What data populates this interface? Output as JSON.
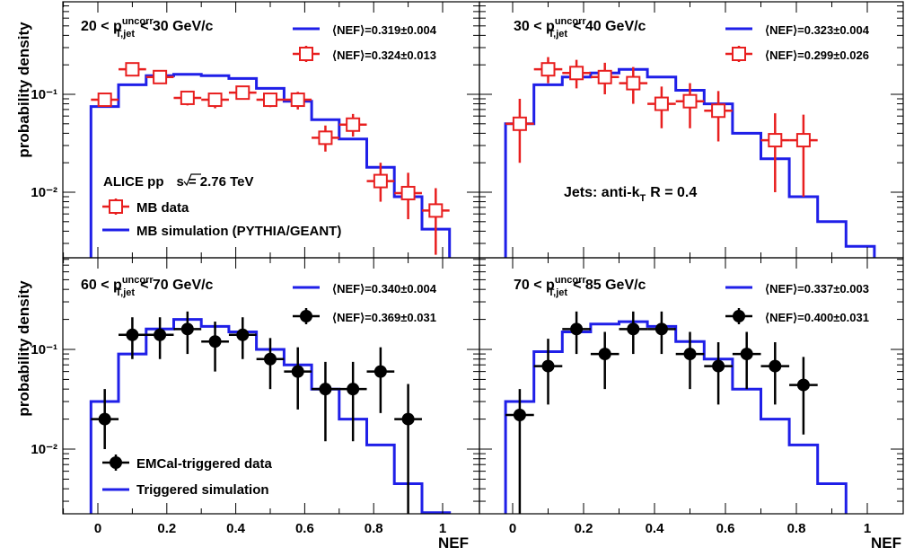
{
  "figure": {
    "ylabel": "probability density",
    "xlabel": "NEF",
    "ylabel_top": "probability density",
    "ylabel_bottom": "probability density",
    "xlabel_left": "NEF",
    "xlabel_right": "NEF",
    "colors": {
      "simulation": "#1f1fe8",
      "mb_data": "#e81f1f",
      "triggered_data": "#000000",
      "frame": "#000000"
    },
    "x_ticks": [
      "0",
      "0.2",
      "0.4",
      "0.6",
      "0.8",
      "1"
    ],
    "y_ticks": [
      "10⁻¹",
      "10⁻²"
    ]
  },
  "chart_data": [
    {
      "type": "line",
      "panel": "top-left",
      "title_prefix": "20 < p",
      "title_sup": "uncorr",
      "title_sub": "T,jet",
      "title_suffix": "< 30 GeV/c",
      "xlim": [
        -0.1,
        1.05
      ],
      "ylim": [
        0.0022,
        0.8
      ],
      "yscale": "log",
      "legend_sim": "⟨NEF⟩=0.319±0.004",
      "legend_data": "⟨NEF⟩=0.324±0.013",
      "annotations": {
        "system_prefix": "ALICE pp",
        "system_suffix": "= 2.76 TeV",
        "data_label": "MB data",
        "sim_label": "MB simulation (PYTHIA/GEANT)"
      },
      "series": [
        {
          "name": "MB simulation (PYTHIA/GEANT)",
          "kind": "step",
          "edges": [
            -0.02,
            0.06,
            0.14,
            0.22,
            0.3,
            0.38,
            0.46,
            0.54,
            0.62,
            0.7,
            0.78,
            0.86,
            0.94,
            1.02
          ],
          "values": [
            0.075,
            0.125,
            0.155,
            0.16,
            0.155,
            0.145,
            0.115,
            0.085,
            0.055,
            0.035,
            0.018,
            0.009,
            0.0042
          ]
        },
        {
          "name": "MB data",
          "kind": "points",
          "marker": "open-square",
          "x": [
            0.02,
            0.1,
            0.18,
            0.26,
            0.34,
            0.42,
            0.5,
            0.58,
            0.66,
            0.74,
            0.82,
            0.9,
            0.98
          ],
          "y": [
            0.088,
            0.18,
            0.15,
            0.092,
            0.088,
            0.104,
            0.088,
            0.088,
            0.036,
            0.049,
            0.013,
            0.0098,
            0.0065
          ],
          "yerr_low": [
            0.012,
            0.02,
            0.018,
            0.015,
            0.016,
            0.014,
            0.014,
            0.018,
            0.01,
            0.012,
            0.005,
            0.0045,
            0.0042
          ],
          "yerr_high": [
            0.012,
            0.02,
            0.018,
            0.015,
            0.016,
            0.014,
            0.014,
            0.018,
            0.012,
            0.014,
            0.007,
            0.006,
            0.0045
          ],
          "xerr": 0.04
        }
      ]
    },
    {
      "type": "line",
      "panel": "top-right",
      "title_prefix": "30 < p",
      "title_sup": "uncorr",
      "title_sub": "T,jet",
      "title_suffix": "< 40 GeV/c",
      "xlim": [
        -0.1,
        1.05
      ],
      "ylim": [
        0.0022,
        0.8
      ],
      "yscale": "log",
      "legend_sim": "⟨NEF⟩=0.323±0.004",
      "legend_data": "⟨NEF⟩=0.299±0.026",
      "annotations": {
        "jets_prefix": "Jets: anti-k",
        "jets_sub": "T",
        "jets_suffix": "R = 0.4"
      },
      "series": [
        {
          "name": "simulation",
          "kind": "step",
          "edges": [
            -0.02,
            0.06,
            0.14,
            0.22,
            0.3,
            0.38,
            0.46,
            0.54,
            0.62,
            0.7,
            0.78,
            0.86,
            0.94,
            1.02
          ],
          "values": [
            0.05,
            0.125,
            0.15,
            0.165,
            0.18,
            0.15,
            0.11,
            0.08,
            0.04,
            0.022,
            0.009,
            0.005,
            0.0028
          ]
        },
        {
          "name": "data",
          "kind": "points",
          "marker": "open-square",
          "x": [
            0.02,
            0.1,
            0.18,
            0.26,
            0.34,
            0.42,
            0.5,
            0.58,
            0.74,
            0.82
          ],
          "y": [
            0.05,
            0.18,
            0.165,
            0.15,
            0.13,
            0.08,
            0.085,
            0.068,
            0.034,
            0.034
          ],
          "yerr_low": [
            0.03,
            0.05,
            0.05,
            0.05,
            0.05,
            0.035,
            0.04,
            0.035,
            0.024,
            0.025
          ],
          "yerr_high": [
            0.04,
            0.06,
            0.06,
            0.06,
            0.06,
            0.04,
            0.045,
            0.04,
            0.03,
            0.028
          ],
          "xerr": 0.04
        }
      ]
    },
    {
      "type": "line",
      "panel": "bottom-left",
      "title_prefix": "60 < p",
      "title_sup": "uncorr",
      "title_sub": "T,jet",
      "title_suffix": "< 70 GeV/c",
      "xlim": [
        -0.1,
        1.05
      ],
      "ylim": [
        0.0022,
        0.8
      ],
      "yscale": "log",
      "legend_sim": "⟨NEF⟩=0.340±0.004",
      "legend_data": "⟨NEF⟩=0.369±0.031",
      "annotations": {
        "data_label": "EMCal-triggered data",
        "sim_label": "Triggered simulation"
      },
      "series": [
        {
          "name": "Triggered simulation",
          "kind": "step",
          "edges": [
            -0.02,
            0.06,
            0.14,
            0.22,
            0.3,
            0.38,
            0.46,
            0.54,
            0.62,
            0.7,
            0.78,
            0.86,
            0.94,
            1.02
          ],
          "values": [
            0.03,
            0.09,
            0.16,
            0.2,
            0.17,
            0.15,
            0.1,
            0.07,
            0.04,
            0.02,
            0.011,
            0.0045,
            0.0023
          ]
        },
        {
          "name": "EMCal-triggered data",
          "kind": "points",
          "marker": "filled-circle",
          "x": [
            0.02,
            0.1,
            0.18,
            0.26,
            0.34,
            0.42,
            0.5,
            0.58,
            0.66,
            0.74,
            0.82,
            0.9
          ],
          "y": [
            0.02,
            0.14,
            0.14,
            0.16,
            0.12,
            0.14,
            0.08,
            0.06,
            0.04,
            0.04,
            0.06,
            0.02
          ],
          "yerr_low": [
            0.01,
            0.06,
            0.06,
            0.07,
            0.06,
            0.06,
            0.04,
            0.035,
            0.028,
            0.028,
            0.037,
            0.018
          ],
          "yerr_high": [
            0.02,
            0.07,
            0.07,
            0.08,
            0.07,
            0.07,
            0.05,
            0.045,
            0.035,
            0.035,
            0.045,
            0.025
          ],
          "xerr": 0.04
        }
      ]
    },
    {
      "type": "line",
      "panel": "bottom-right",
      "title_prefix": "70 < p",
      "title_sup": "uncorr",
      "title_sub": "T,jet",
      "title_suffix": "< 85 GeV/c",
      "xlim": [
        -0.1,
        1.05
      ],
      "ylim": [
        0.0022,
        0.8
      ],
      "yscale": "log",
      "legend_sim": "⟨NEF⟩=0.337±0.003",
      "legend_data": "⟨NEF⟩=0.400±0.031",
      "annotations": {},
      "series": [
        {
          "name": "simulation",
          "kind": "step",
          "edges": [
            -0.02,
            0.06,
            0.14,
            0.22,
            0.3,
            0.38,
            0.46,
            0.54,
            0.62,
            0.7,
            0.78,
            0.86,
            0.94,
            1.02
          ],
          "values": [
            0.03,
            0.095,
            0.15,
            0.18,
            0.19,
            0.17,
            0.12,
            0.08,
            0.04,
            0.02,
            0.011,
            0.0045,
            0.0022
          ]
        },
        {
          "name": "data",
          "kind": "points",
          "marker": "filled-circle",
          "x": [
            0.02,
            0.1,
            0.18,
            0.26,
            0.34,
            0.42,
            0.5,
            0.58,
            0.66,
            0.74,
            0.82
          ],
          "y": [
            0.022,
            0.068,
            0.16,
            0.09,
            0.16,
            0.16,
            0.09,
            0.068,
            0.09,
            0.068,
            0.044
          ],
          "yerr_low": [
            0.02,
            0.04,
            0.07,
            0.05,
            0.07,
            0.07,
            0.05,
            0.04,
            0.05,
            0.04,
            0.03
          ],
          "yerr_high": [
            0.018,
            0.06,
            0.08,
            0.06,
            0.08,
            0.08,
            0.06,
            0.05,
            0.06,
            0.05,
            0.04
          ],
          "xerr": 0.04
        }
      ]
    }
  ]
}
